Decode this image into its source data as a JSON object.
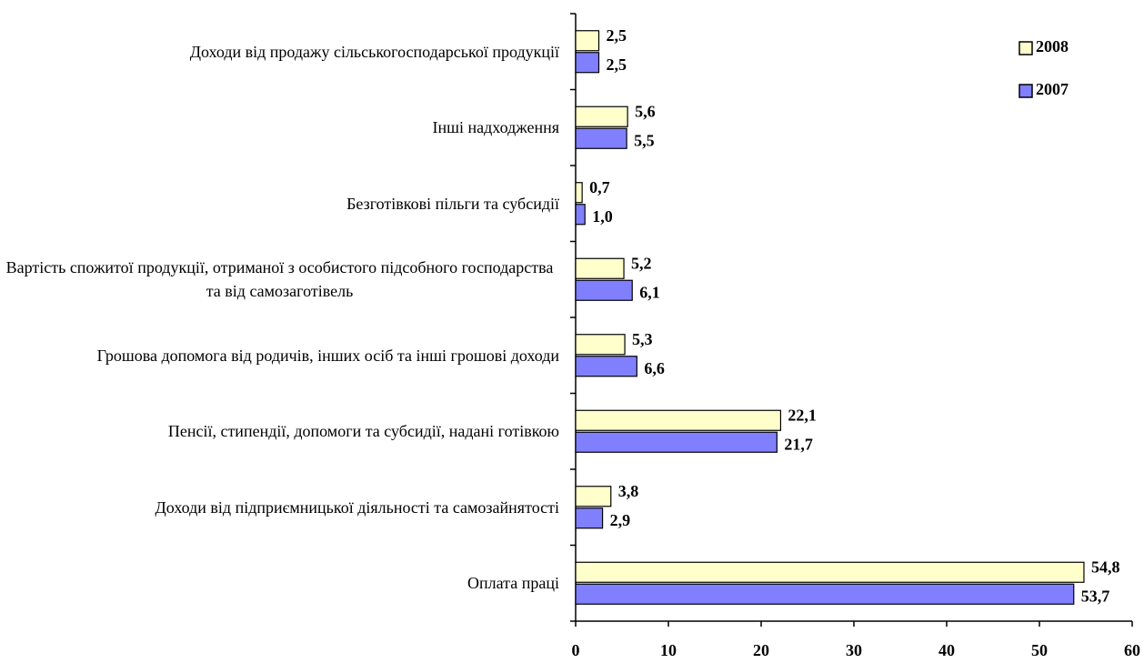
{
  "chart_data": {
    "type": "hbar",
    "categories": [
      "Доходи від продажу сільськогосподарської продукції",
      "Інші надходження",
      "Безготівкові пільги та субсидії",
      "Вартість спожитої продукції, отриманої з особистого підсобного господарства та від самозаготівель",
      "Грошова допомога від родичів, інших осіб та інші грошові доходи",
      "Пенсії, стипендії, допомоги та субсидії, надані готівкою",
      "Доходи від підприємницької діяльності та самозайнятості",
      "Оплата праці"
    ],
    "series": [
      {
        "name": "2008",
        "color": "#ffffcc",
        "values": [
          2.5,
          5.6,
          0.7,
          5.2,
          5.3,
          22.1,
          3.8,
          54.8
        ],
        "value_labels": [
          "2,5",
          "5,6",
          "0,7",
          "5,2",
          "5,3",
          "22,1",
          "3,8",
          "54,8"
        ]
      },
      {
        "name": "2007",
        "color": "#8080ff",
        "values": [
          2.5,
          5.5,
          1.0,
          6.1,
          6.6,
          21.7,
          2.9,
          53.7
        ],
        "value_labels": [
          "2,5",
          "5,5",
          "1,0",
          "6,1",
          "6,6",
          "21,7",
          "2,9",
          "53,7"
        ]
      }
    ],
    "xlim": [
      0,
      60
    ],
    "xticks": [
      0,
      10,
      20,
      30,
      40,
      50,
      60
    ],
    "legend": "top-right"
  }
}
